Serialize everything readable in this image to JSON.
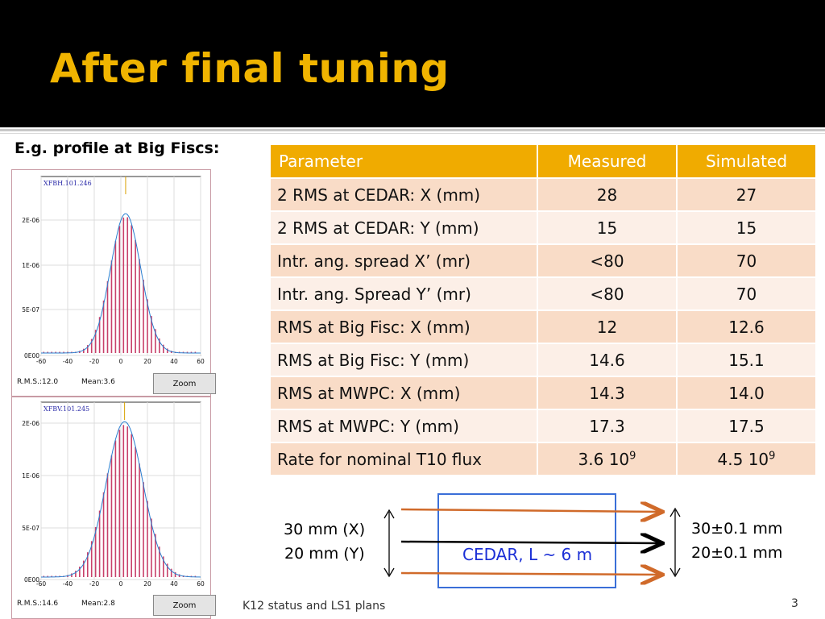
{
  "slide": {
    "title": "After final tuning",
    "subtitle": "E.g. profile at Big Fiscs:",
    "footer_left": "K12 status and LS1 plans",
    "page_number": "3"
  },
  "plots": [
    {
      "label": "XFBH.101.246",
      "y_ticks": [
        "2E-06",
        "1E-06",
        "5E-07",
        "0E00"
      ],
      "x_ticks": [
        "-60",
        "-40",
        "-20",
        "0",
        "20",
        "40",
        "60"
      ],
      "rms_text": "R.M.S.:12.0",
      "mean_text": "Mean:3.6",
      "zoom_label": "Zoom"
    },
    {
      "label": "XFBV.101.245",
      "y_ticks": [
        "2E-06",
        "1E-06",
        "5E-07",
        "0E00"
      ],
      "x_ticks": [
        "-60",
        "-40",
        "-20",
        "0",
        "20",
        "40",
        "60"
      ],
      "rms_text": "R.M.S.:14.6",
      "mean_text": "Mean:2.8",
      "zoom_label": "Zoom"
    }
  ],
  "table": {
    "headers": [
      "Parameter",
      "Measured",
      "Simulated"
    ],
    "rows": [
      {
        "param": "2 RMS at CEDAR: X (mm)",
        "measured": "28",
        "simulated": "27"
      },
      {
        "param": "2 RMS at CEDAR: Y (mm)",
        "measured": "15",
        "simulated": "15"
      },
      {
        "param": "Intr. ang. spread X’ (mr)",
        "measured": "<80",
        "simulated": "70"
      },
      {
        "param": "Intr. ang. Spread Y’ (mr)",
        "measured": "<80",
        "simulated": "70"
      },
      {
        "param": "RMS at Big Fisc: X (mm)",
        "measured": "12",
        "simulated": "12.6"
      },
      {
        "param": "RMS at Big Fisc: Y (mm)",
        "measured": "14.6",
        "simulated": "15.1"
      },
      {
        "param": "RMS at MWPC: X (mm)",
        "measured": "14.3",
        "simulated": "14.0"
      },
      {
        "param": "RMS at MWPC: Y (mm)",
        "measured": "17.3",
        "simulated": "17.5"
      },
      {
        "param": "Rate for nominal T10 flux",
        "measured_base": "3.6 10",
        "measured_exp": "9",
        "simulated_base": "4.5 10",
        "simulated_exp": "9"
      }
    ]
  },
  "diagram": {
    "left_line1": "30 mm (X)",
    "left_line2": "20 mm (Y)",
    "right_line1": "30±0.1 mm",
    "right_line2": "20±0.1 mm",
    "box_label": "CEDAR, L ~ 6 m",
    "colors": {
      "beam_edge": "#d06a2a",
      "box": "#3a6fd8",
      "box_text": "#1b2fd6"
    }
  },
  "colors": {
    "header_bg": "#000000",
    "title": "#f0b400",
    "table_header": "#f0ab00",
    "row_odd": "#f9dcc7",
    "row_even": "#fcefe7",
    "bar": "#c8406a",
    "fit": "#2a7fd0"
  }
}
